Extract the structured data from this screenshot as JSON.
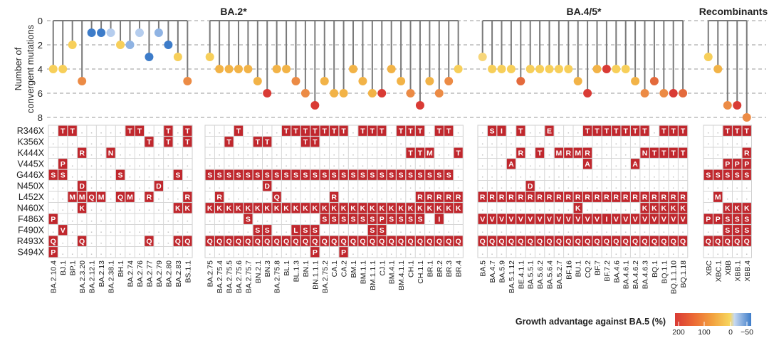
{
  "chart_data": {
    "type": "heatmap",
    "ylabel_lines": [
      "Number of",
      "convergent mutations"
    ],
    "yticks": [
      "0",
      "2",
      "4",
      "6",
      "8"
    ],
    "ylim": [
      0,
      8
    ],
    "grid": true,
    "rows": [
      "R346X",
      "K356X",
      "K444X",
      "V445X",
      "G446X",
      "N450X",
      "L452X",
      "N460X",
      "F486X",
      "F490X",
      "R493X",
      "S494X"
    ],
    "groups": [
      {
        "title": "",
        "columns": [
          "BA.2.10.4",
          "BJ.1",
          "BP.1",
          "BA.2.3.20",
          "BA.2.12.1",
          "BA.2.13",
          "BA.2.38.1",
          "BH.1",
          "BA.2.74",
          "BA.2.76",
          "BA.2.77",
          "BA.2.79",
          "BA.2.80",
          "BA.2.83",
          "BS.1.1"
        ],
        "convergent_mutations": [
          4,
          4,
          2,
          5,
          1,
          1,
          1,
          2,
          2,
          1,
          3,
          1,
          2,
          3,
          5
        ],
        "growth_colors": [
          "#f7cf5a",
          "#f7cf5a",
          "#f7cf5a",
          "#ec8b45",
          "#3d7cc9",
          "#3d7cc9",
          "#b5cdee",
          "#f7cf5a",
          "#8fb3e3",
          "#b5cdee",
          "#3d7cc9",
          "#8fb3e3",
          "#3d7cc9",
          "#f7cf5a",
          "#ec8b45"
        ],
        "matrix": [
          ".TT.....TT..T.T",
          "..........T.T.T",
          "...R..N........",
          ".P.............",
          "SS.....S.....S.",
          "...D.......D...",
          "..MMQM.QM.R...R",
          "...K.........KK",
          "P..............",
          ".V.............",
          "Q..Q......Q..QQ",
          "P.............."
        ]
      },
      {
        "title": "BA.2*",
        "columns": [
          "BA.2.75",
          "BA.2.75.4",
          "BA.2.75.5",
          "BA.2.75.6",
          "BA.2.75.7",
          "BN.2.1",
          "BN.3",
          "BA.2.75.8",
          "BL.1",
          "BL.1.3",
          "BN.1",
          "BN.1.1.1",
          "BA.2.75.2",
          "CA.1",
          "CA.2",
          "BM.1",
          "BM.1.1",
          "BM.1.1.1",
          "CJ.1",
          "BM.4.1",
          "BM.4.1.1",
          "CH.1",
          "CH.1.1",
          "BR.1",
          "BR.2",
          "BR.3",
          "BR.4"
        ],
        "convergent_mutations": [
          3,
          4,
          4,
          4,
          4,
          5,
          6,
          4,
          4,
          5,
          6,
          7,
          5,
          6,
          6,
          4,
          5,
          6,
          6,
          4,
          5,
          6,
          7,
          5,
          6,
          5,
          4
        ],
        "growth_colors": [
          "#f7cf5a",
          "#f2b347",
          "#f2b347",
          "#f2b347",
          "#f2b347",
          "#f2b347",
          "#d93b35",
          "#f2b347",
          "#f2b347",
          "#ec8b45",
          "#ec8b45",
          "#d93b35",
          "#f2b347",
          "#f2b347",
          "#f2b347",
          "#f2b347",
          "#f2b347",
          "#f2b347",
          "#d93b35",
          "#f2b347",
          "#f2b347",
          "#ec8b45",
          "#d93b35",
          "#f2b347",
          "#ec8b45",
          "#ec8b45",
          "#f7cf5a"
        ],
        "matrix": [
          "...T....TTTTTTT.TTT.TTT.TT.",
          "..T..TT...TT...............",
          ".....................TTM..T",
          "...........................",
          "SSSSSSSSSSSSSSSSSSSSSSSSSS.",
          "......D....................",
          ".R.....Q.....R........RRRRR",
          "KKKKKKKKKKKKKKKKKKKKKKKKKKK",
          "....S.......SSSSSSPSSSS.I..",
          ".....SS..LSS.....SS........",
          "QQQQQQQQQQQQQQQQQQQQQQQQQQQ",
          "...........P..P............"
        ]
      },
      {
        "title": "BA.4/5*",
        "columns": [
          "BA.5",
          "BA.4.7",
          "BA.5.9",
          "BA.5.1.12",
          "BE.4.1.1",
          "BA.5.5.1",
          "BA.5.6.2",
          "BA.5.6.4",
          "BA.5.2.7",
          "BF.16",
          "BU.1",
          "CQ.2",
          "BF.7",
          "BF.7.2",
          "BA.4.6",
          "BA.4.6.1",
          "BA.4.6.2",
          "BA.4.6.3",
          "BQ.1",
          "BQ.1.1",
          "BQ.1.1.10",
          "BQ.1.18"
        ],
        "convergent_mutations": [
          3,
          4,
          4,
          4,
          5,
          4,
          4,
          4,
          4,
          4,
          5,
          6,
          4,
          4,
          4,
          4,
          5,
          6,
          5,
          6,
          6,
          6
        ],
        "growth_colors": [
          "#f7d67a",
          "#f7cf5a",
          "#f7cf5a",
          "#f7cf5a",
          "#e46a3c",
          "#f7cf5a",
          "#f7cf5a",
          "#f7cf5a",
          "#f7cf5a",
          "#f7cf5a",
          "#f2b347",
          "#d93b35",
          "#f2b347",
          "#d93b35",
          "#f7cf5a",
          "#f7cf5a",
          "#f2b347",
          "#ec8b45",
          "#e46a3c",
          "#ec8b45",
          "#d93b35",
          "#e46a3c"
        ],
        "matrix": [
          ".SI.T..E...TTTTTTT.TTT",
          "......................",
          "....R.T.MRMR.....NTTTT",
          "...A.......A....A.....",
          "......................",
          ".....D................",
          "RRRRRRRRRRRRRRRRRRRRRR",
          "..........K......KKKKK",
          "VVVVVVVVVVVVVIVVVVVVVV",
          "......................",
          "QQQQQQQQQQQQQQQQQQQQQQ",
          "......................"
        ]
      },
      {
        "title": "Recombinants",
        "columns": [
          "XBC",
          "XBC.1",
          "XBB",
          "XBB.1",
          "XBB.4"
        ],
        "convergent_mutations": [
          3,
          4,
          7,
          7,
          8
        ],
        "growth_colors": [
          "#f7cf5a",
          "#f2b347",
          "#ec8b45",
          "#d93b35",
          "#ec8b45"
        ],
        "matrix": [
          "..TTT",
          ".....",
          "....R",
          "..PPP",
          "SSSSS",
          ".....",
          ".M...",
          "..KKK",
          "PPSSS",
          "..SSS",
          "QQQQQ",
          "....."
        ]
      }
    ],
    "legend": {
      "title": "Growth advantage against BA.5 (%)",
      "ticks": [
        "200",
        "100",
        "0",
        "−50"
      ],
      "colors": [
        "#d93b35",
        "#ec6a35",
        "#f2a33f",
        "#f7d65e",
        "#c6d8f0",
        "#3d7cc9"
      ]
    },
    "cell_color": "#c0272d"
  }
}
